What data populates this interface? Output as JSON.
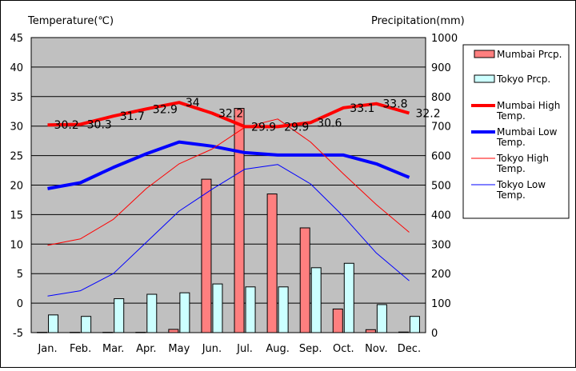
{
  "chart_data": {
    "type": "bar+line",
    "title_left": "Temperature(℃)",
    "title_right": "Precipitation(mm)",
    "categories": [
      "Jan.",
      "Feb.",
      "Mar.",
      "Apr.",
      "May",
      "Jun.",
      "Jul.",
      "Aug.",
      "Sep.",
      "Oct.",
      "Nov.",
      "Dec."
    ],
    "left_axis": {
      "min": -5,
      "max": 45,
      "ticks": [
        -5,
        0,
        5,
        10,
        15,
        20,
        25,
        30,
        35,
        40,
        45
      ]
    },
    "right_axis": {
      "min": 0,
      "max": 1000,
      "ticks": [
        0,
        100,
        200,
        300,
        400,
        500,
        600,
        700,
        800,
        900,
        1000
      ]
    },
    "bar_series": [
      {
        "name": "Mumbai Prcp.",
        "color": "#ff7f7f",
        "values": [
          1,
          1,
          1,
          1,
          11,
          520,
          760,
          470,
          355,
          80,
          10,
          2
        ]
      },
      {
        "name": "Tokyo Prcp.",
        "color": "#ccffff",
        "values": [
          60,
          55,
          115,
          130,
          135,
          165,
          155,
          155,
          220,
          235,
          95,
          55
        ]
      }
    ],
    "line_series": [
      {
        "name": "Mumbai High Temp.",
        "color": "#ff0000",
        "width": 4,
        "values": [
          30.2,
          30.3,
          31.7,
          32.9,
          34,
          32.2,
          29.9,
          29.9,
          30.6,
          33.1,
          33.8,
          32.2
        ],
        "labels": [
          "30.2",
          "30.3",
          "31.7",
          "32.9",
          "34",
          "32.2",
          "29.9",
          "29.9",
          "30.6",
          "33.1",
          "33.8",
          "32.2"
        ]
      },
      {
        "name": "Mumbai Low Temp.",
        "color": "#0000ff",
        "width": 4,
        "values": [
          19.4,
          20.4,
          23,
          25.3,
          27.3,
          26.6,
          25.5,
          25.1,
          25.1,
          25.1,
          23.6,
          21.3
        ]
      },
      {
        "name": "Tokyo High Temp.",
        "color": "#ff0000",
        "width": 1,
        "values": [
          9.8,
          10.9,
          14.2,
          19.4,
          23.6,
          26.1,
          29.8,
          31.2,
          27.3,
          21.9,
          16.7,
          12
        ]
      },
      {
        "name": "Tokyo Low Temp.",
        "color": "#0000ff",
        "width": 1,
        "values": [
          1.2,
          2.1,
          5,
          10.3,
          15.6,
          19.3,
          22.7,
          23.5,
          20.2,
          14.7,
          8.5,
          3.8
        ]
      }
    ],
    "legend": {
      "position": "right",
      "items": [
        {
          "kind": "bar",
          "label": "Mumbai Prcp.",
          "color": "#ff7f7f"
        },
        {
          "kind": "bar",
          "label": "Tokyo Prcp.",
          "color": "#ccffff"
        },
        {
          "kind": "line",
          "label": "Mumbai High Temp.",
          "color": "#ff0000",
          "width": 4
        },
        {
          "kind": "line",
          "label": "Mumbai Low Temp.",
          "color": "#0000ff",
          "width": 4
        },
        {
          "kind": "line",
          "label": "Tokyo High Temp.",
          "color": "#ff0000",
          "width": 1
        },
        {
          "kind": "line",
          "label": "Tokyo Low Temp.",
          "color": "#0000ff",
          "width": 1
        }
      ]
    },
    "grid": true,
    "plot_background": "#c0c0c0"
  }
}
